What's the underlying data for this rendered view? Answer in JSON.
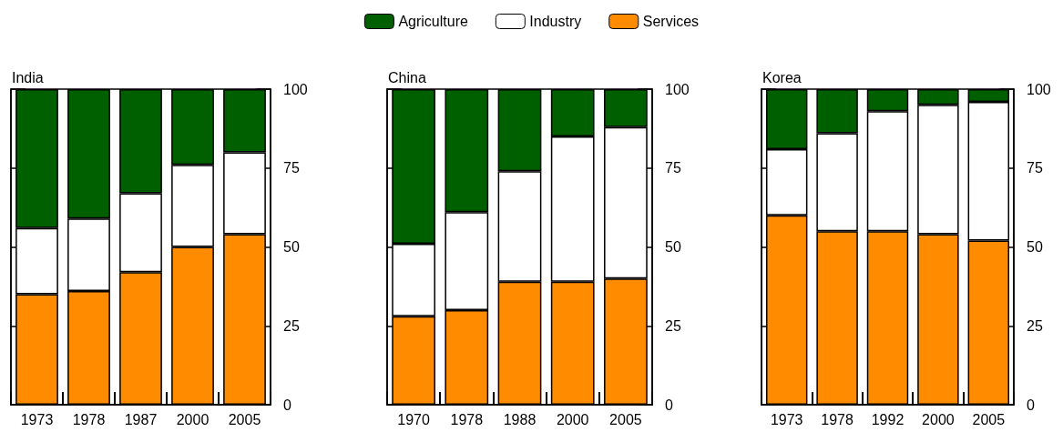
{
  "chart_data": [
    {
      "type": "bar",
      "title": "India",
      "categories": [
        "1973",
        "1978",
        "1987",
        "2000",
        "2005"
      ],
      "stacked": true,
      "ylim": [
        0,
        100
      ],
      "yticks": [
        0,
        25,
        50,
        75,
        100
      ],
      "grid": false,
      "legend": "top",
      "series": [
        {
          "name": "Services",
          "color": "#ff8c00",
          "values": [
            35,
            36,
            42,
            50,
            54
          ]
        },
        {
          "name": "Industry",
          "color": "#ffffff",
          "values": [
            21,
            23,
            25,
            26,
            26
          ]
        },
        {
          "name": "Agriculture",
          "color": "#006000",
          "values": [
            44,
            41,
            33,
            24,
            20
          ]
        }
      ]
    },
    {
      "type": "bar",
      "title": "China",
      "categories": [
        "1970",
        "1978",
        "1988",
        "2000",
        "2005"
      ],
      "stacked": true,
      "ylim": [
        0,
        100
      ],
      "yticks": [
        0,
        25,
        50,
        75,
        100
      ],
      "grid": false,
      "series": [
        {
          "name": "Services",
          "color": "#ff8c00",
          "values": [
            28,
            30,
            39,
            39,
            40
          ]
        },
        {
          "name": "Industry",
          "color": "#ffffff",
          "values": [
            23,
            31,
            35,
            46,
            48
          ]
        },
        {
          "name": "Agriculture",
          "color": "#006000",
          "values": [
            49,
            39,
            26,
            15,
            12
          ]
        }
      ]
    },
    {
      "type": "bar",
      "title": "Korea",
      "categories": [
        "1973",
        "1978",
        "1992",
        "2000",
        "2005"
      ],
      "stacked": true,
      "ylim": [
        0,
        100
      ],
      "yticks": [
        0,
        25,
        50,
        75,
        100
      ],
      "grid": false,
      "series": [
        {
          "name": "Services",
          "color": "#ff8c00",
          "values": [
            60,
            55,
            55,
            54,
            52
          ]
        },
        {
          "name": "Industry",
          "color": "#ffffff",
          "values": [
            21,
            31,
            38,
            41,
            44
          ]
        },
        {
          "name": "Agriculture",
          "color": "#006000",
          "values": [
            19,
            14,
            7,
            5,
            4
          ]
        }
      ]
    }
  ]
}
